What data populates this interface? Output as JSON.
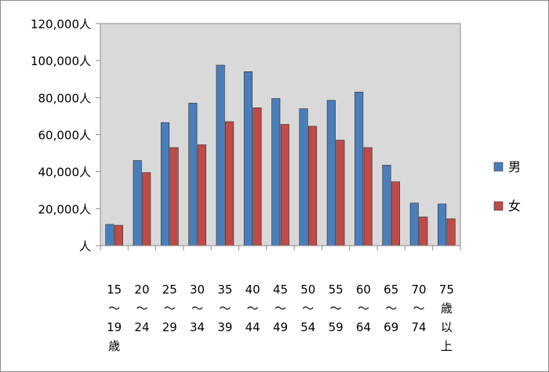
{
  "chart_data": {
    "type": "bar",
    "categories": [
      [
        "15",
        "〜",
        "19",
        "歳"
      ],
      [
        "20",
        "〜",
        "24"
      ],
      [
        "25",
        "〜",
        "29"
      ],
      [
        "30",
        "〜",
        "34"
      ],
      [
        "35",
        "〜",
        "39"
      ],
      [
        "40",
        "〜",
        "44"
      ],
      [
        "45",
        "〜",
        "49"
      ],
      [
        "50",
        "〜",
        "54"
      ],
      [
        "55",
        "〜",
        "59"
      ],
      [
        "60",
        "〜",
        "64"
      ],
      [
        "65",
        "〜",
        "69"
      ],
      [
        "70",
        "〜",
        "74"
      ],
      [
        "75",
        "歳",
        "以",
        "上"
      ]
    ],
    "series": [
      {
        "name": "男",
        "color": "#4a7ebb",
        "values": [
          11500,
          46000,
          66500,
          77000,
          97500,
          94000,
          79500,
          74000,
          78500,
          83000,
          43500,
          23000,
          22500
        ]
      },
      {
        "name": "女",
        "color": "#be4b48",
        "values": [
          11000,
          39500,
          53000,
          54500,
          67000,
          74500,
          65500,
          64500,
          57000,
          53000,
          34500,
          15500,
          14500
        ]
      }
    ],
    "yticks": [
      "人",
      "20,000人",
      "40,000人",
      "60,000人",
      "80,000人",
      "100,000人",
      "120,000人"
    ],
    "ylim": [
      0,
      120000
    ],
    "grid": false,
    "legend_position": "right",
    "plot_background": "#d9d9d9"
  }
}
